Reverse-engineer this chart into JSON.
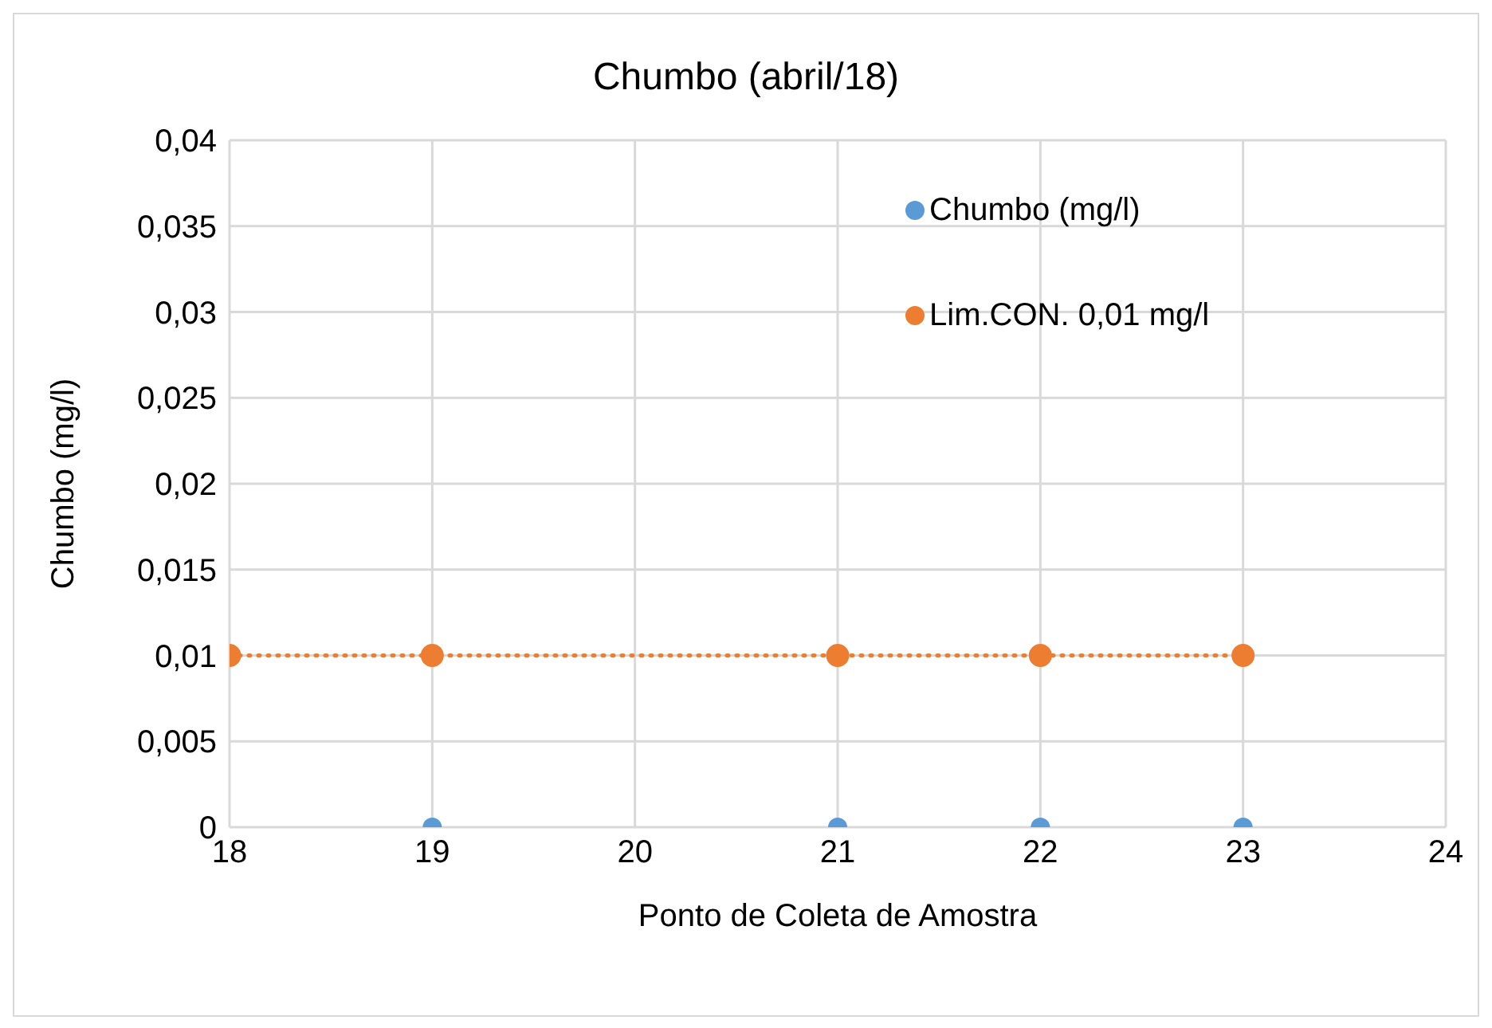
{
  "chart_data": {
    "type": "scatter",
    "title": "Chumbo (abril/18)",
    "xlabel": "Ponto de Coleta de Amostra",
    "ylabel": "Chumbo (mg/l)",
    "series": [
      {
        "name": "Chumbo (mg/l)",
        "color": "#5b9bd5",
        "x": [
          19,
          21,
          22,
          23
        ],
        "values": [
          0,
          0,
          0,
          0
        ]
      },
      {
        "name": "Lim.CON. 0,01 mg/l",
        "type": "line",
        "color": "#ed7d31",
        "line_style": "dotted",
        "x": [
          18,
          19,
          21,
          22,
          23
        ],
        "values": [
          0.01,
          0.01,
          0.01,
          0.01,
          0.01
        ]
      }
    ],
    "xlim": [
      18,
      24
    ],
    "xticks": [
      18,
      19,
      20,
      21,
      22,
      23,
      24
    ],
    "ylim": [
      0,
      0.04
    ],
    "yticks": [
      {
        "value": 0,
        "label": "0"
      },
      {
        "value": 0.005,
        "label": "0,005"
      },
      {
        "value": 0.01,
        "label": "0,01"
      },
      {
        "value": 0.015,
        "label": "0,015"
      },
      {
        "value": 0.02,
        "label": "0,02"
      },
      {
        "value": 0.025,
        "label": "0,025"
      },
      {
        "value": 0.03,
        "label": "0,03"
      },
      {
        "value": 0.035,
        "label": "0,035"
      },
      {
        "value": 0.04,
        "label": "0,04"
      }
    ],
    "grid": true,
    "legend": "top right",
    "marker": "circle"
  }
}
